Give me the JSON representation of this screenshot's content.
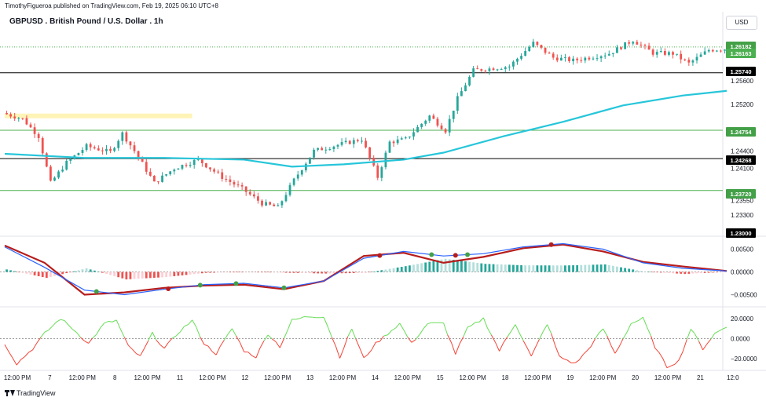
{
  "header": {
    "publisher_line": "TimothyFigueroa published on TradingView.com, Feb 19, 2025 06:10 UTC+8",
    "title": "GBPUSD . British Pound / U.S. Dollar . 1h",
    "currency_button": "USD"
  },
  "footer": {
    "brand": "TradingView"
  },
  "colors": {
    "bull": "#26a69a",
    "bear": "#ef5350",
    "ema": "#26c6da",
    "macd_line": "#2962ff",
    "signal_line": "#b71c1c",
    "rsi_up": "#66dd55",
    "rsi_down": "#f44336",
    "zone": "#fff3b0"
  },
  "chart_data": [
    {
      "type": "candlestick",
      "title": "GBPUSD . British Pound / U.S. Dollar . 1h",
      "y_axis_ticks": [
        1.256,
        1.252,
        1.244,
        1.241,
        1.2355,
        1.233
      ],
      "ylim": [
        1.2295,
        1.2645
      ],
      "x_axis_labels": [
        "12:00 PM",
        "7",
        "12:00 PM",
        "8",
        "12:00 PM",
        "11",
        "12:00 PM",
        "12",
        "12:00 PM",
        "13",
        "12:00 PM",
        "14",
        "12:00 PM",
        "15",
        "12:00 PM",
        "18",
        "12:00 PM",
        "19",
        "12:00 PM",
        "20",
        "12:00 PM",
        "21",
        "12:0"
      ],
      "x_range_bars": [
        0,
        180
      ],
      "price_labels": [
        {
          "value": "1.26182",
          "role": "level"
        },
        {
          "value": "1.26163",
          "role": "last"
        },
        {
          "value": "1.25740",
          "role": "level"
        },
        {
          "value": "1.24754",
          "role": "level"
        },
        {
          "value": "1.24268",
          "role": "level"
        },
        {
          "value": "1.23720",
          "role": "level"
        },
        {
          "value": "1.23000",
          "role": "level"
        }
      ],
      "horizontal_levels": [
        {
          "value": 1.26182,
          "style": "dotted",
          "color": "#4caf50"
        },
        {
          "value": 1.2574,
          "style": "solid",
          "color": "#000000"
        },
        {
          "value": 1.24754,
          "style": "solid",
          "color": "#4caf50"
        },
        {
          "value": 1.24268,
          "style": "solid",
          "color": "#000000"
        },
        {
          "value": 1.2372,
          "style": "solid",
          "color": "#4caf50"
        }
      ],
      "zone": {
        "x_from": 0,
        "x_to": 47,
        "y_low": 1.2497,
        "y_high": 1.2504
      },
      "ema_series": [
        [
          0,
          1.2435
        ],
        [
          20,
          1.2428
        ],
        [
          40,
          1.2428
        ],
        [
          60,
          1.2425
        ],
        [
          72,
          1.2413
        ],
        [
          85,
          1.2417
        ],
        [
          100,
          1.2425
        ],
        [
          110,
          1.2437
        ],
        [
          125,
          1.2465
        ],
        [
          140,
          1.249
        ],
        [
          155,
          1.2518
        ],
        [
          170,
          1.2535
        ],
        [
          181,
          1.2543
        ]
      ],
      "path_anchors": [
        [
          0,
          1.2505
        ],
        [
          5,
          1.2495
        ],
        [
          9,
          1.2465
        ],
        [
          12,
          1.2385
        ],
        [
          16,
          1.242
        ],
        [
          21,
          1.2448
        ],
        [
          27,
          1.2438
        ],
        [
          30,
          1.247
        ],
        [
          33,
          1.244
        ],
        [
          38,
          1.2385
        ],
        [
          43,
          1.241
        ],
        [
          49,
          1.2425
        ],
        [
          55,
          1.2395
        ],
        [
          60,
          1.2375
        ],
        [
          65,
          1.235
        ],
        [
          69,
          1.2343
        ],
        [
          73,
          1.239
        ],
        [
          78,
          1.244
        ],
        [
          85,
          1.2452
        ],
        [
          90,
          1.246
        ],
        [
          94,
          1.2395
        ],
        [
          97,
          1.2455
        ],
        [
          101,
          1.246
        ],
        [
          107,
          1.25
        ],
        [
          111,
          1.2475
        ],
        [
          114,
          1.253
        ],
        [
          118,
          1.2578
        ],
        [
          127,
          1.2585
        ],
        [
          133,
          1.2625
        ],
        [
          138,
          1.26
        ],
        [
          143,
          1.2595
        ],
        [
          152,
          1.2607
        ],
        [
          158,
          1.263
        ],
        [
          163,
          1.2608
        ],
        [
          168,
          1.2607
        ],
        [
          172,
          1.259
        ],
        [
          177,
          1.2613
        ],
        [
          181,
          1.2615
        ]
      ]
    },
    {
      "type": "macd",
      "y_axis_ticks": [
        0.005,
        0.0,
        -0.005
      ],
      "ylim": [
        -0.0075,
        0.0075
      ],
      "macd_line": [
        [
          0,
          0.0055
        ],
        [
          10,
          0.001
        ],
        [
          20,
          -0.004
        ],
        [
          30,
          -0.005
        ],
        [
          40,
          -0.0038
        ],
        [
          50,
          -0.0028
        ],
        [
          60,
          -0.0025
        ],
        [
          70,
          -0.0035
        ],
        [
          80,
          -0.002
        ],
        [
          90,
          0.003
        ],
        [
          100,
          0.0045
        ],
        [
          110,
          0.0035
        ],
        [
          120,
          0.004
        ],
        [
          130,
          0.0055
        ],
        [
          140,
          0.0062
        ],
        [
          150,
          0.005
        ],
        [
          160,
          0.002
        ],
        [
          170,
          0.0008
        ],
        [
          181,
          0.0002
        ]
      ],
      "signal_line": [
        [
          0,
          0.0058
        ],
        [
          10,
          0.002
        ],
        [
          20,
          -0.005
        ],
        [
          30,
          -0.0045
        ],
        [
          40,
          -0.0035
        ],
        [
          50,
          -0.003
        ],
        [
          60,
          -0.0028
        ],
        [
          70,
          -0.0038
        ],
        [
          80,
          -0.002
        ],
        [
          90,
          0.0035
        ],
        [
          100,
          0.0042
        ],
        [
          110,
          0.002
        ],
        [
          120,
          0.0033
        ],
        [
          130,
          0.0052
        ],
        [
          140,
          0.006
        ],
        [
          150,
          0.0045
        ],
        [
          160,
          0.0022
        ],
        [
          170,
          0.0012
        ],
        [
          181,
          0.0002
        ]
      ],
      "cross_markers": [
        {
          "x": 23,
          "up": true
        },
        {
          "x": 41,
          "up": false
        },
        {
          "x": 49,
          "up": true
        },
        {
          "x": 58,
          "up": true
        },
        {
          "x": 70,
          "up": true
        },
        {
          "x": 94,
          "up": false
        },
        {
          "x": 107,
          "up": true
        },
        {
          "x": 113,
          "up": false
        },
        {
          "x": 116,
          "up": true
        },
        {
          "x": 137,
          "up": false
        }
      ]
    },
    {
      "type": "oscillator",
      "y_axis_ticks": [
        20.0,
        0.0,
        -20.0
      ],
      "ylim": [
        -30,
        30
      ],
      "anchors": [
        [
          0,
          -5
        ],
        [
          3,
          -25
        ],
        [
          7,
          -10
        ],
        [
          10,
          5
        ],
        [
          14,
          20
        ],
        [
          17,
          10
        ],
        [
          21,
          -5
        ],
        [
          25,
          15
        ],
        [
          28,
          18
        ],
        [
          31,
          -8
        ],
        [
          34,
          -18
        ],
        [
          37,
          5
        ],
        [
          40,
          -10
        ],
        [
          44,
          8
        ],
        [
          47,
          18
        ],
        [
          50,
          -5
        ],
        [
          53,
          -15
        ],
        [
          57,
          10
        ],
        [
          60,
          -12
        ],
        [
          63,
          -18
        ],
        [
          66,
          5
        ],
        [
          69,
          -8
        ],
        [
          72,
          18
        ],
        [
          76,
          22
        ],
        [
          80,
          22
        ],
        [
          84,
          -18
        ],
        [
          87,
          10
        ],
        [
          90,
          -20
        ],
        [
          93,
          -5
        ],
        [
          96,
          5
        ],
        [
          99,
          15
        ],
        [
          102,
          -5
        ],
        [
          106,
          15
        ],
        [
          110,
          15
        ],
        [
          113,
          -15
        ],
        [
          116,
          10
        ],
        [
          120,
          20
        ],
        [
          124,
          -12
        ],
        [
          128,
          15
        ],
        [
          132,
          -18
        ],
        [
          136,
          15
        ],
        [
          139,
          -18
        ],
        [
          143,
          -25
        ],
        [
          146,
          -12
        ],
        [
          150,
          10
        ],
        [
          153,
          -15
        ],
        [
          157,
          15
        ],
        [
          160,
          20
        ],
        [
          163,
          -8
        ],
        [
          166,
          -28
        ],
        [
          169,
          -22
        ],
        [
          172,
          10
        ],
        [
          175,
          -10
        ],
        [
          178,
          5
        ],
        [
          181,
          12
        ]
      ]
    }
  ]
}
